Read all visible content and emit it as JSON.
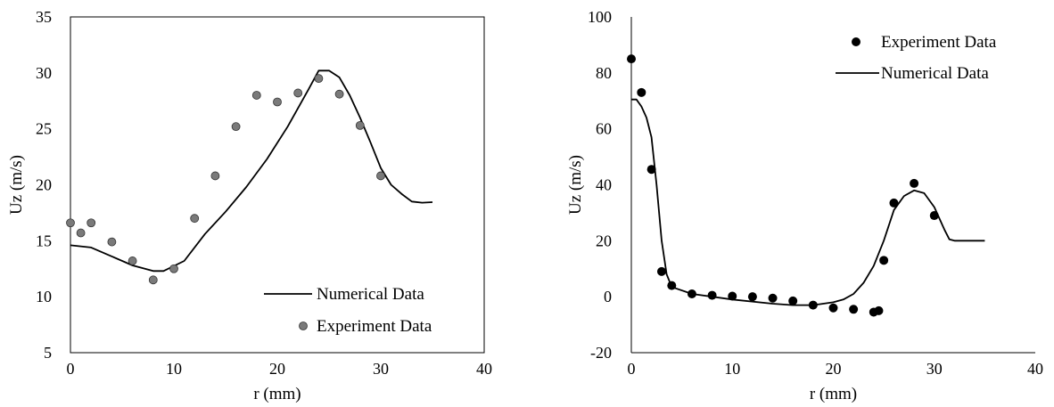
{
  "chart_data": [
    {
      "type": "scatter",
      "xlabel": "r (mm)",
      "ylabel": "Uz (m/s)",
      "xlim": [
        0,
        40
      ],
      "ylim": [
        5,
        35
      ],
      "xticks": [
        0,
        10,
        20,
        30,
        40
      ],
      "yticks": [
        5,
        10,
        15,
        20,
        25,
        30,
        35
      ],
      "legend_position": "bottom-right",
      "series": [
        {
          "name": "Numerical Data",
          "kind": "line",
          "color": "#000000",
          "points": [
            [
              0,
              14.6
            ],
            [
              2,
              14.4
            ],
            [
              4,
              13.6
            ],
            [
              6,
              12.8
            ],
            [
              8,
              12.3
            ],
            [
              9,
              12.3
            ],
            [
              11,
              13.2
            ],
            [
              13,
              15.6
            ],
            [
              15,
              17.6
            ],
            [
              17,
              19.8
            ],
            [
              19,
              22.3
            ],
            [
              21,
              25.2
            ],
            [
              23,
              28.5
            ],
            [
              24,
              30.2
            ],
            [
              25,
              30.2
            ],
            [
              26,
              29.6
            ],
            [
              27,
              28.0
            ],
            [
              28,
              26.0
            ],
            [
              29,
              23.8
            ],
            [
              30,
              21.5
            ],
            [
              31,
              20.0
            ],
            [
              32,
              19.2
            ],
            [
              33,
              18.5
            ],
            [
              34,
              18.4
            ],
            [
              35,
              18.45
            ]
          ]
        },
        {
          "name": "Experiment Data",
          "kind": "marker",
          "color": "#7a7a7a",
          "points": [
            [
              0,
              16.6
            ],
            [
              1,
              15.7
            ],
            [
              2,
              16.6
            ],
            [
              4,
              14.9
            ],
            [
              6,
              13.2
            ],
            [
              8,
              11.5
            ],
            [
              10,
              12.5
            ],
            [
              12,
              17.0
            ],
            [
              14,
              20.8
            ],
            [
              16,
              25.2
            ],
            [
              18,
              28.0
            ],
            [
              20,
              27.4
            ],
            [
              22,
              28.2
            ],
            [
              24,
              29.5
            ],
            [
              26,
              28.1
            ],
            [
              28,
              25.3
            ],
            [
              30,
              20.8
            ]
          ]
        }
      ]
    },
    {
      "type": "scatter",
      "xlabel": "r (mm)",
      "ylabel": "Uz (m/s)",
      "xlim": [
        0,
        40
      ],
      "ylim": [
        -20,
        100
      ],
      "xticks": [
        0,
        10,
        20,
        30,
        40
      ],
      "yticks": [
        -20,
        0,
        20,
        40,
        60,
        80,
        100
      ],
      "legend_position": "top-right",
      "series": [
        {
          "name": "Experiment Data",
          "kind": "marker",
          "color": "#000000",
          "points": [
            [
              0,
              85
            ],
            [
              1,
              73
            ],
            [
              2,
              45.5
            ],
            [
              3,
              9
            ],
            [
              4,
              4
            ],
            [
              6,
              1
            ],
            [
              8,
              0.5
            ],
            [
              10,
              0.2
            ],
            [
              12,
              0
            ],
            [
              14,
              -0.5
            ],
            [
              16,
              -1.5
            ],
            [
              18,
              -3
            ],
            [
              20,
              -4
            ],
            [
              22,
              -4.5
            ],
            [
              24,
              -5.5
            ],
            [
              24.5,
              -5
            ],
            [
              25,
              13
            ],
            [
              26,
              33.5
            ],
            [
              28,
              40.5
            ],
            [
              30,
              29
            ]
          ]
        },
        {
          "name": "Numerical Data",
          "kind": "line",
          "color": "#000000",
          "points": [
            [
              0,
              70.5
            ],
            [
              0.5,
              70.5
            ],
            [
              1,
              68
            ],
            [
              1.5,
              64
            ],
            [
              2,
              57
            ],
            [
              2.5,
              40
            ],
            [
              3,
              20
            ],
            [
              3.5,
              8
            ],
            [
              4,
              3.5
            ],
            [
              6,
              1
            ],
            [
              10,
              -1
            ],
            [
              14,
              -2.5
            ],
            [
              16,
              -3
            ],
            [
              18,
              -3
            ],
            [
              20,
              -2
            ],
            [
              21,
              -1
            ],
            [
              22,
              1
            ],
            [
              23,
              5
            ],
            [
              24,
              11
            ],
            [
              25,
              20
            ],
            [
              26,
              31
            ],
            [
              27,
              36
            ],
            [
              28,
              38
            ],
            [
              29,
              37
            ],
            [
              30,
              32
            ],
            [
              31,
              24
            ],
            [
              31.5,
              20.5
            ],
            [
              32,
              20
            ],
            [
              35,
              20
            ]
          ]
        }
      ]
    }
  ]
}
